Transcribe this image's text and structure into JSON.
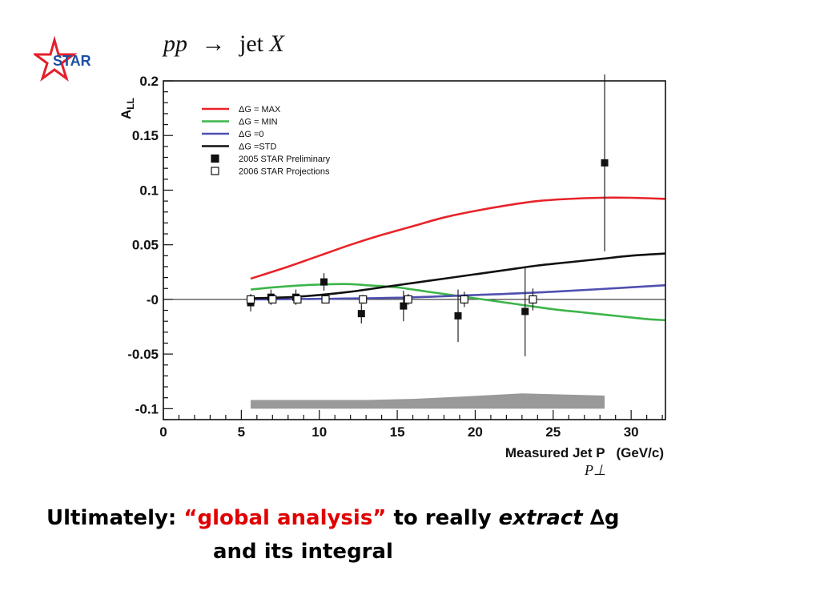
{
  "logo": {
    "text": "STAR"
  },
  "process": {
    "lhs": "pp",
    "arrow": "→",
    "jet": "jet",
    "X": "X"
  },
  "chart_data": {
    "type": "line",
    "ylabel": "A",
    "ylabel_sub": "LL",
    "xlabel": "Measured Jet P   (GeV/c)",
    "xlim": [
      0,
      32.2
    ],
    "ylim": [
      -0.11,
      0.2
    ],
    "xticks": [
      "0",
      "5",
      "10",
      "15",
      "20",
      "25",
      "30"
    ],
    "yticks": [
      "-0.1",
      "-0.05",
      "-0",
      "0.05",
      "0.1",
      "0.15",
      "0.2"
    ],
    "legend_position": "top-left",
    "series": [
      {
        "name": "ΔG = MAX",
        "color": "#e8232a",
        "x": [
          5.6,
          8,
          10,
          12,
          14,
          16,
          18,
          20,
          22,
          24,
          26,
          28,
          30,
          32.2
        ],
        "y": [
          0.019,
          0.03,
          0.04,
          0.05,
          0.059,
          0.067,
          0.075,
          0.081,
          0.086,
          0.09,
          0.092,
          0.093,
          0.093,
          0.092
        ]
      },
      {
        "name": "ΔG = MIN",
        "color": "#3cb54a",
        "x": [
          5.6,
          7,
          9,
          11,
          12,
          13,
          15,
          17,
          19,
          21,
          23,
          25,
          27,
          29,
          31,
          32.2
        ],
        "y": [
          0.009,
          0.011,
          0.013,
          0.014,
          0.014,
          0.013,
          0.011,
          0.007,
          0.003,
          -0.001,
          -0.005,
          -0.009,
          -0.012,
          -0.015,
          -0.018,
          -0.019
        ]
      },
      {
        "name": "ΔG =0",
        "color": "#5050b0",
        "x": [
          5.6,
          10,
          15,
          20,
          25,
          32.2
        ],
        "y": [
          0.0,
          0.0005,
          0.0015,
          0.004,
          0.007,
          0.013
        ]
      },
      {
        "name": "ΔG =STD",
        "color": "#111111",
        "x": [
          5.6,
          8,
          10,
          12,
          14,
          16,
          18,
          20,
          22,
          24,
          26,
          28,
          30,
          32.2
        ],
        "y": [
          0.001,
          0.002,
          0.004,
          0.007,
          0.011,
          0.015,
          0.019,
          0.023,
          0.027,
          0.031,
          0.034,
          0.037,
          0.04,
          0.042
        ]
      }
    ],
    "points": [
      {
        "name": "2005 STAR Preliminary",
        "marker": "filled-square",
        "x": [
          5.6,
          6.9,
          8.5,
          10.3,
          12.7,
          15.4,
          18.9,
          23.2,
          28.3
        ],
        "y": [
          -0.003,
          0.002,
          0.002,
          0.016,
          -0.013,
          -0.006,
          -0.015,
          -0.011,
          0.125
        ],
        "err": [
          0.008,
          0.007,
          0.007,
          0.008,
          0.009,
          0.014,
          0.024,
          0.041,
          0.081
        ]
      },
      {
        "name": "2006 STAR Projections",
        "marker": "open-square",
        "x": [
          5.6,
          7.0,
          8.6,
          10.4,
          12.8,
          15.7,
          19.3,
          23.7
        ],
        "y": [
          0.0,
          0.0,
          0.0,
          0.0,
          0.0,
          0.0,
          0.0,
          0.0
        ],
        "err": [
          0.003,
          0.003,
          0.003,
          0.003,
          0.004,
          0.005,
          0.007,
          0.01
        ]
      }
    ],
    "systematic_band": {
      "color": "#999999",
      "x": [
        5.6,
        13,
        16,
        19,
        23,
        28.3
      ],
      "y_low": [
        -0.1,
        -0.1,
        -0.1,
        -0.1,
        -0.1,
        -0.1
      ],
      "y_high": [
        -0.092,
        -0.092,
        -0.091,
        -0.089,
        -0.086,
        -0.088
      ]
    },
    "xlabel_extra": "P⊥"
  },
  "caption": {
    "line1_prefix": "Ultimately: ",
    "line1_highlight": "“global analysis”",
    "line1_middle": " to really ",
    "line1_italic": "extract",
    "line1_suffix": " ∆g",
    "line2": "and its integral"
  }
}
